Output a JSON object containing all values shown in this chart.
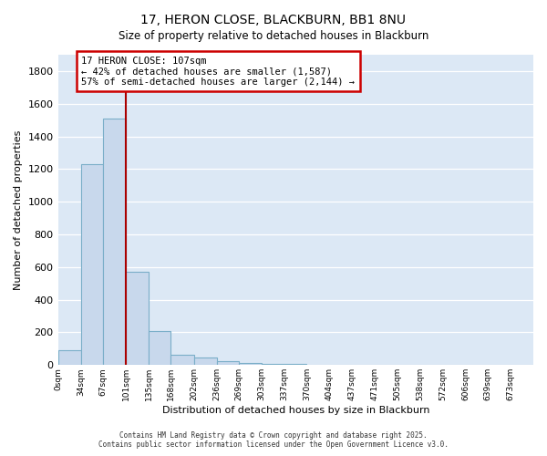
{
  "title": "17, HERON CLOSE, BLACKBURN, BB1 8NU",
  "subtitle": "Size of property relative to detached houses in Blackburn",
  "xlabel": "Distribution of detached houses by size in Blackburn",
  "ylabel": "Number of detached properties",
  "bar_labels": [
    "0sqm",
    "34sqm",
    "67sqm",
    "101sqm",
    "135sqm",
    "168sqm",
    "202sqm",
    "236sqm",
    "269sqm",
    "303sqm",
    "337sqm",
    "370sqm",
    "404sqm",
    "437sqm",
    "471sqm",
    "505sqm",
    "538sqm",
    "572sqm",
    "606sqm",
    "639sqm",
    "673sqm"
  ],
  "bar_heights": [
    90,
    1230,
    1510,
    570,
    210,
    65,
    45,
    25,
    15,
    10,
    5,
    0,
    0,
    0,
    0,
    0,
    0,
    0,
    0,
    0,
    0
  ],
  "bar_color": "#c8d8ec",
  "bar_edge_color": "#7aaec8",
  "property_label": "17 HERON CLOSE: 107sqm",
  "annotation_line1": "← 42% of detached houses are smaller (1,587)",
  "annotation_line2": "57% of semi-detached houses are larger (2,144) →",
  "annotation_box_color": "#ffffff",
  "annotation_box_edge": "#cc0000",
  "vline_color": "#aa0000",
  "ylim": [
    0,
    1900
  ],
  "yticks": [
    0,
    200,
    400,
    600,
    800,
    1000,
    1200,
    1400,
    1600,
    1800
  ],
  "plot_bg": "#dce8f5",
  "fig_bg": "#ffffff",
  "grid_color": "#ffffff",
  "footer_line1": "Contains HM Land Registry data © Crown copyright and database right 2025.",
  "footer_line2": "Contains public sector information licensed under the Open Government Licence v3.0.",
  "bin_edges": [
    0,
    34,
    67,
    101,
    135,
    168,
    202,
    236,
    269,
    303,
    337,
    370,
    404,
    437,
    471,
    505,
    538,
    572,
    606,
    639,
    673,
    707
  ],
  "vline_x": 101
}
